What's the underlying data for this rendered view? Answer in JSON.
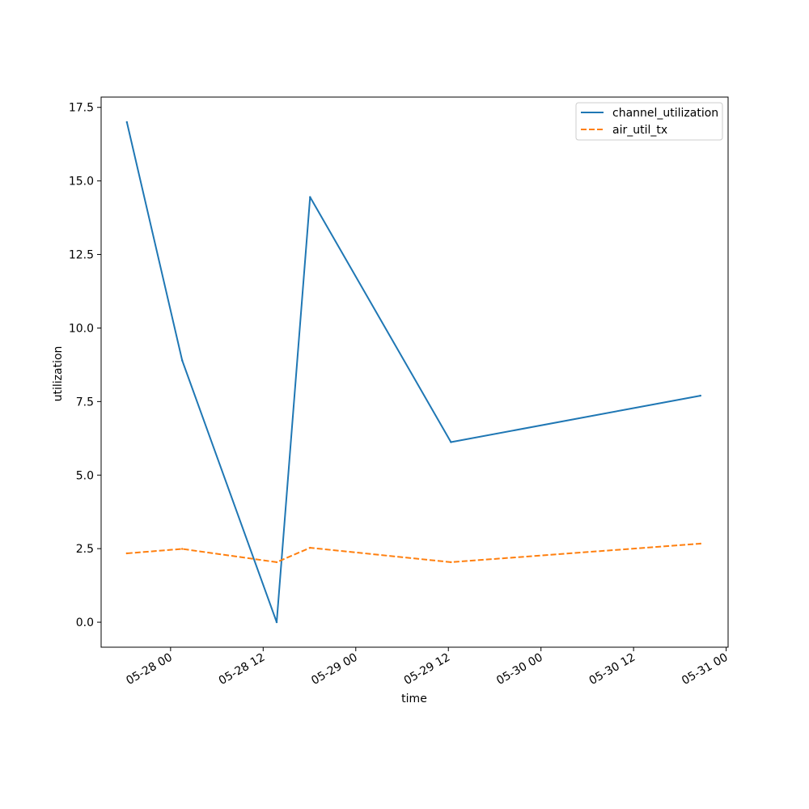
{
  "chart_data": {
    "type": "line",
    "xlabel": "time",
    "ylabel": "utilization",
    "x_tick_labels": [
      "05-28 00",
      "05-28 12",
      "05-29 00",
      "05-29 12",
      "05-30 00",
      "05-30 12",
      "05-31 00"
    ],
    "y_tick_labels": [
      "0.0",
      "2.5",
      "5.0",
      "7.5",
      "10.0",
      "12.5",
      "15.0",
      "17.5"
    ],
    "xlim": [
      "2024-05-27 15:00",
      "2024-05-31 00:15"
    ],
    "ylim": [
      -0.85,
      17.85
    ],
    "x": [
      "2024-05-27 18:20",
      "2024-05-28 01:30",
      "2024-05-28 13:45",
      "2024-05-28 18:05",
      "2024-05-29 12:20",
      "2024-05-30 20:40"
    ],
    "series": [
      {
        "name": "channel_utilization",
        "values": [
          17.0,
          8.9,
          0.0,
          14.45,
          6.12,
          7.7
        ],
        "color": "#1f77b4",
        "style": "solid"
      },
      {
        "name": "air_util_tx",
        "values": [
          2.34,
          2.49,
          2.04,
          2.53,
          2.04,
          2.67
        ],
        "color": "#ff7f0e",
        "style": "dashed"
      }
    ],
    "legend": "upper right",
    "grid": false
  }
}
